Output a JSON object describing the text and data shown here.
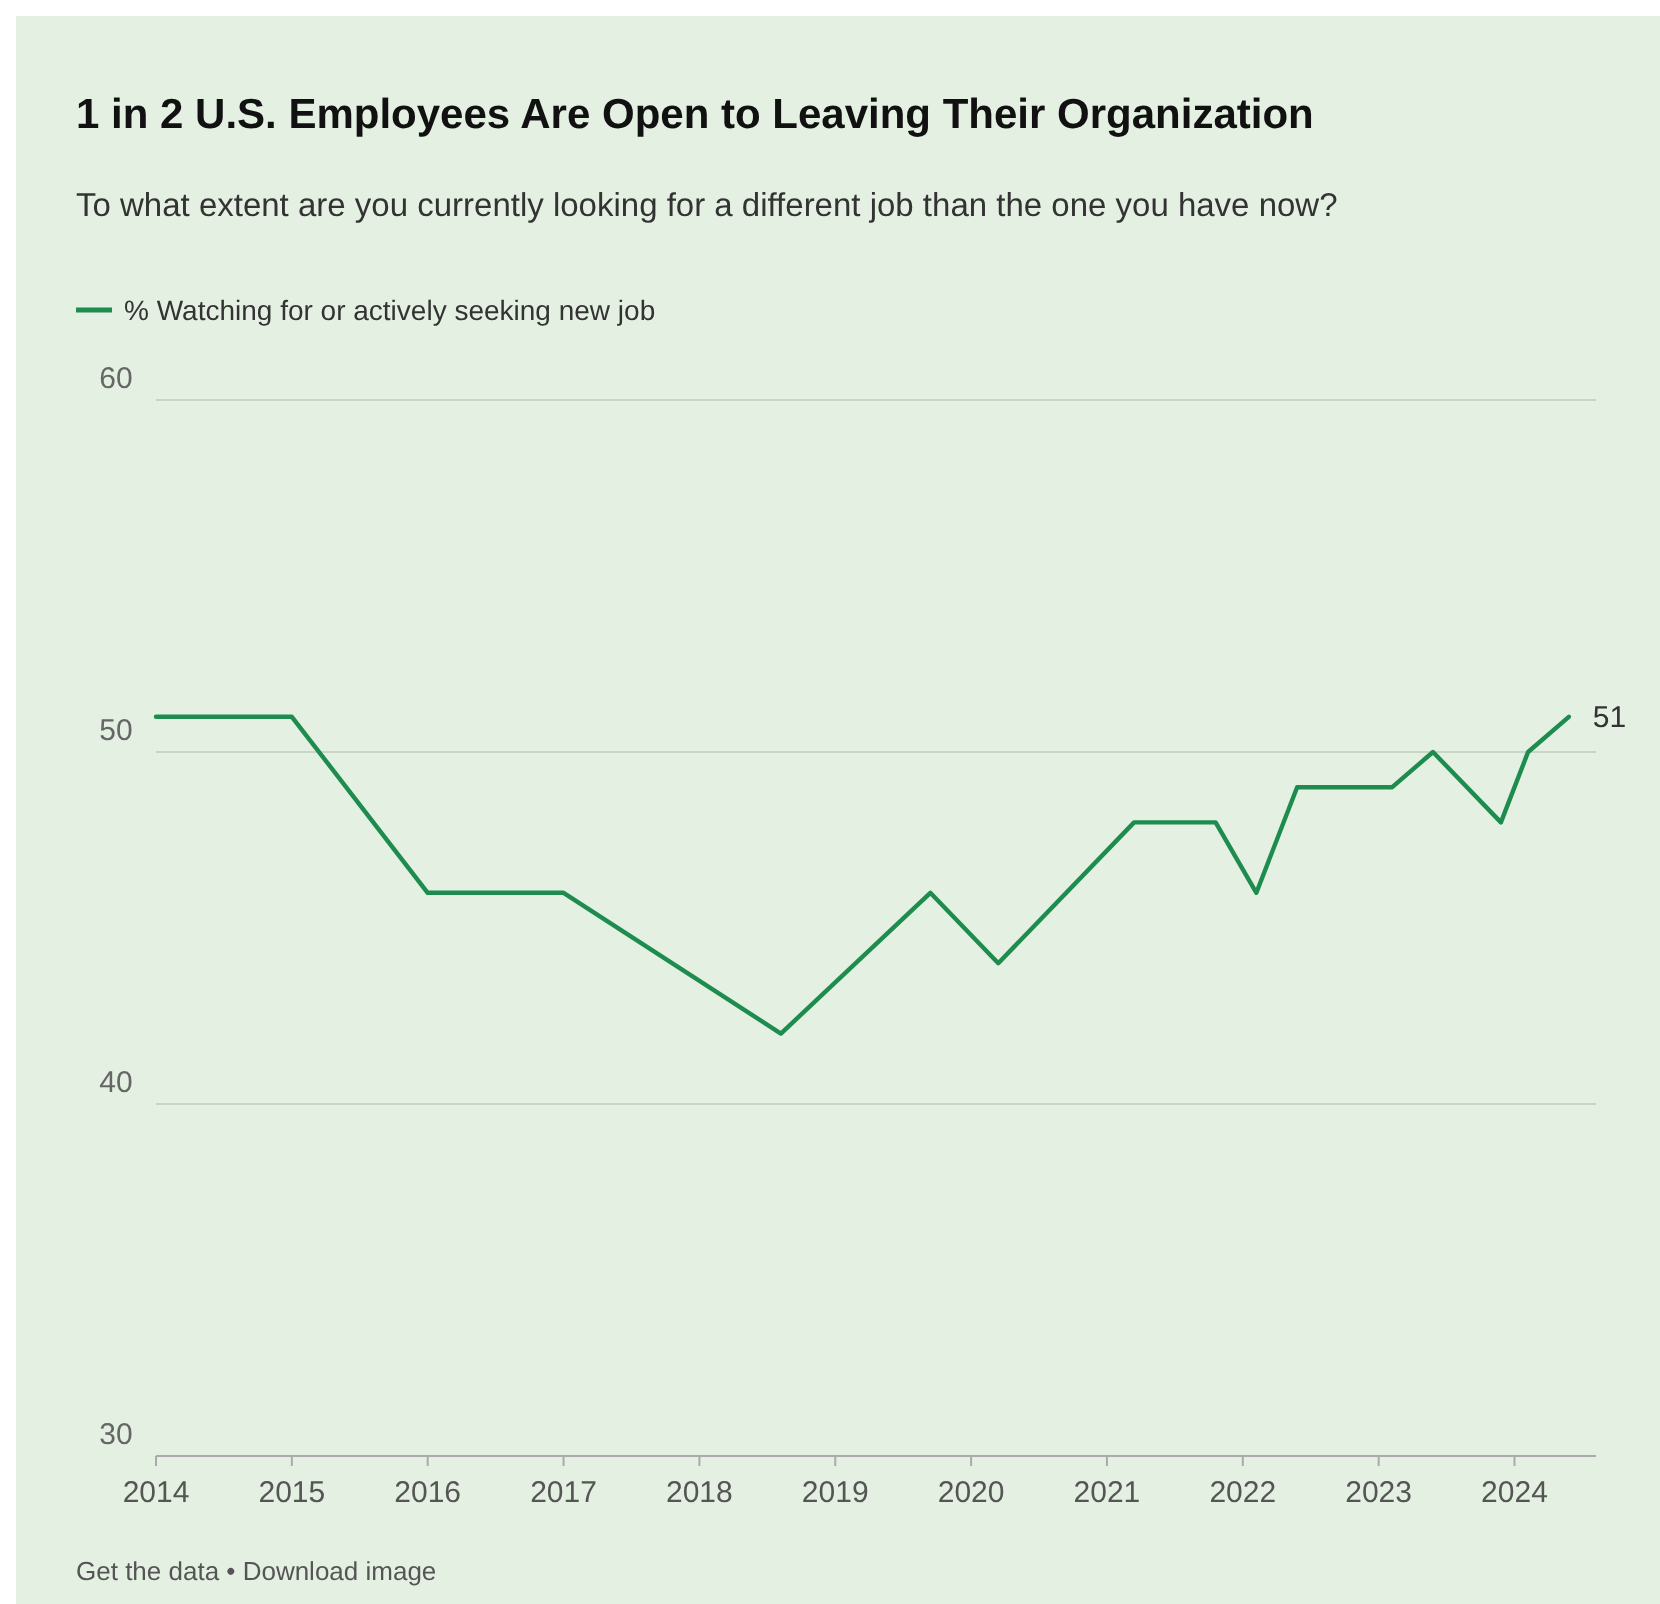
{
  "chart_data": {
    "type": "line",
    "title": "1 in 2 U.S. Employees Are Open to Leaving Their Organization",
    "subtitle": "To what extent are you currently looking for a different job than the one you have now?",
    "annotations": [
      "Get the data • Download image"
    ],
    "x": [
      2014,
      2015,
      2016,
      2017,
      2018.6,
      2019.7,
      2020.2,
      2021.2,
      2021.8,
      2022.1,
      2022.4,
      2023.1,
      2023.4,
      2023.9,
      2024.1,
      2024.4
    ],
    "series": [
      {
        "name": "% Watching for or actively seeking new job",
        "color": "#1e8c4e",
        "values": [
          51,
          51,
          46,
          46,
          42,
          46,
          44,
          48,
          48,
          46,
          49,
          49,
          50,
          48,
          50,
          51
        ],
        "value_labels": [
          null,
          null,
          null,
          null,
          null,
          null,
          null,
          null,
          null,
          null,
          null,
          null,
          null,
          null,
          null,
          "51"
        ]
      }
    ],
    "xlim": [
      2014,
      2024.6
    ],
    "xticks": [
      2014,
      2015,
      2016,
      2017,
      2018,
      2019,
      2020,
      2021,
      2022,
      2023,
      2024
    ],
    "ylim": [
      30,
      60
    ],
    "yticks": [
      30,
      40,
      50,
      60
    ],
    "grid": "y",
    "legend": "top left",
    "marker": "none",
    "line_style": "solid"
  }
}
